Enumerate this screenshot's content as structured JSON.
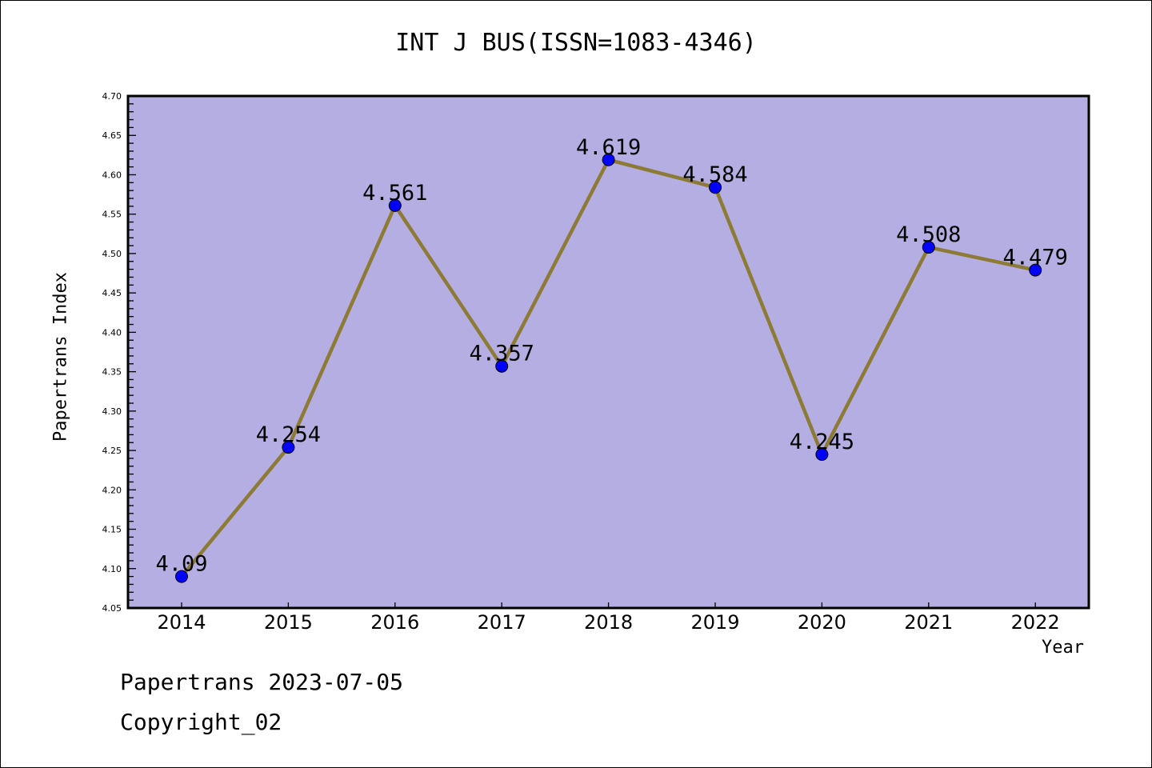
{
  "chart_data": {
    "type": "line",
    "title": "INT J BUS(ISSN=1083-4346)",
    "xlabel": "Year",
    "ylabel": "Papertrans Index",
    "categories": [
      "2014",
      "2015",
      "2016",
      "2017",
      "2018",
      "2019",
      "2020",
      "2021",
      "2022"
    ],
    "values": [
      4.09,
      4.254,
      4.561,
      4.357,
      4.619,
      4.584,
      4.245,
      4.508,
      4.479
    ],
    "data_labels": [
      "4.09",
      "4.254",
      "4.561",
      "4.357",
      "4.619",
      "4.584",
      "4.245",
      "4.508",
      "4.479"
    ],
    "ylim": [
      4.05,
      4.7
    ],
    "yticks": [
      "4.05",
      "4.10",
      "4.15",
      "4.20",
      "4.25",
      "4.30",
      "4.35",
      "4.40",
      "4.45",
      "4.50",
      "4.55",
      "4.60",
      "4.65",
      "4.70"
    ],
    "grid": false,
    "colors": {
      "plot_bg": "#b5aee2",
      "line": "#8c7a35",
      "marker": "#0000ff"
    }
  },
  "footer": {
    "line1": "Papertrans 2023-07-05",
    "line2": "Copyright_02"
  }
}
